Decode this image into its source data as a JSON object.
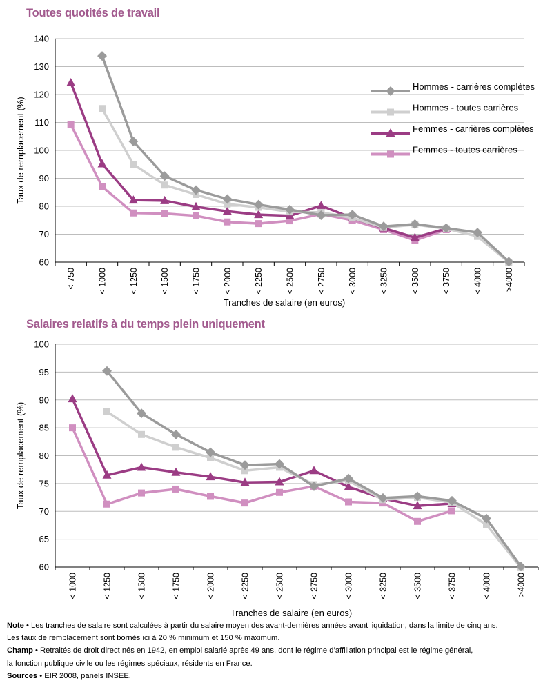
{
  "chart_data": [
    {
      "type": "line",
      "title": "Toutes quotités de travail",
      "xlabel": "Tranches de salaire (en euros)",
      "ylabel": "Taux de remplacement (%)",
      "ylim": [
        60,
        140
      ],
      "yticks": [
        60,
        70,
        80,
        90,
        100,
        110,
        120,
        130,
        140
      ],
      "categories": [
        "< 750",
        "< 1000",
        "< 1250",
        "< 1500",
        "< 1750",
        "< 2000",
        "< 2250",
        "< 2500",
        "< 2750",
        "< 3000",
        "< 3250",
        "< 3500",
        "< 3750",
        "< 4000",
        ">4000"
      ],
      "grid": true,
      "legend": "right",
      "series": [
        {
          "name": "Hommes - carrières complètes",
          "color": "#9b9b9b",
          "marker": "diamond",
          "values": [
            null,
            133.8,
            103.2,
            90.8,
            85.8,
            82.6,
            80.6,
            78.8,
            76.8,
            77.0,
            72.8,
            73.6,
            72.2,
            70.6,
            60.2
          ]
        },
        {
          "name": "Hommes - toutes carrières",
          "color": "#cfcfcf",
          "marker": "square",
          "values": [
            null,
            115.0,
            95.0,
            87.6,
            84.2,
            80.8,
            79.6,
            78.0,
            77.8,
            75.8,
            72.4,
            73.4,
            72.0,
            69.2,
            60.0
          ]
        },
        {
          "name": "Femmes - carrières complètes",
          "color": "#9b3c84",
          "marker": "triangle",
          "values": [
            124.2,
            95.2,
            82.2,
            82.0,
            79.8,
            78.2,
            77.0,
            76.6,
            80.2,
            75.8,
            72.2,
            68.8,
            72.0,
            null,
            null
          ]
        },
        {
          "name": "Femmes - toutes carrières",
          "color": "#d08fc0",
          "marker": "square",
          "values": [
            109.2,
            87.0,
            77.6,
            77.4,
            76.6,
            74.4,
            73.8,
            74.8,
            77.2,
            75.0,
            71.6,
            67.8,
            71.6,
            null,
            null
          ]
        }
      ]
    },
    {
      "type": "line",
      "title": "Salaires relatifs à du temps plein uniquement",
      "xlabel": "Tranches de salaire (en euros)",
      "ylabel": "Taux de remplacement (%)",
      "ylim": [
        60,
        100
      ],
      "yticks": [
        60,
        65,
        70,
        75,
        80,
        85,
        90,
        95,
        100
      ],
      "categories": [
        "< 1000",
        "< 1250",
        "< 1500",
        "< 1750",
        "< 2000",
        "< 2250",
        "< 2500",
        "< 2750",
        "< 3000",
        "< 3250",
        "< 3500",
        "< 3750",
        "< 4000",
        ">4000"
      ],
      "grid": true,
      "series": [
        {
          "name": "Hommes - carrières complètes",
          "color": "#9b9b9b",
          "marker": "diamond",
          "values": [
            null,
            95.2,
            87.6,
            83.8,
            80.6,
            78.3,
            78.5,
            74.5,
            75.9,
            72.4,
            72.7,
            71.9,
            68.7,
            60.1
          ]
        },
        {
          "name": "Hommes - toutes carrières",
          "color": "#cfcfcf",
          "marker": "square",
          "values": [
            null,
            87.9,
            83.8,
            81.5,
            79.6,
            77.3,
            77.9,
            74.8,
            75.5,
            72.1,
            72.5,
            71.6,
            67.6,
            59.9
          ]
        },
        {
          "name": "Femmes - carrières complètes",
          "color": "#9b3c84",
          "marker": "triangle",
          "values": [
            90.2,
            76.5,
            77.9,
            77.0,
            76.2,
            75.2,
            75.3,
            77.3,
            74.4,
            72.3,
            71.0,
            71.4,
            null,
            null
          ]
        },
        {
          "name": "Femmes - toutes carrières",
          "color": "#d08fc0",
          "marker": "square",
          "values": [
            85.0,
            71.3,
            73.3,
            74.0,
            72.7,
            71.5,
            73.4,
            74.5,
            71.7,
            71.5,
            68.2,
            70.1,
            null,
            null
          ]
        }
      ]
    }
  ],
  "notes": {
    "note_label": "Note",
    "note_text": " • Les tranches de salaire sont calculées à partir du salaire moyen des avant-dernières années avant liquidation, dans la limite de cinq ans.",
    "note_line2": "Les taux de remplacement sont bornés ici à 20 % minimum et 150 % maximum.",
    "champ_label": "Champ",
    "champ_text": " • Retraités de droit direct nés en 1942, en emploi salarié après 49 ans, dont le régime d’affiliation principal est le régime général,",
    "champ_line2": "la fonction publique civile ou les régimes spéciaux, résidents en France.",
    "sources_label": "Sources",
    "sources_text": " • EIR 2008, panels INSEE."
  }
}
